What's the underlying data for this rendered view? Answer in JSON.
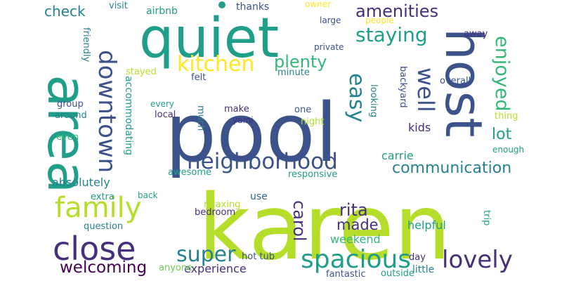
{
  "colors": {
    "background": "#ffffff",
    "dark_purple": "#440154",
    "indigo": "#472f7d",
    "blue": "#3b528b",
    "steel": "#31688e",
    "teal_blue": "#26828e",
    "teal": "#1f9e89",
    "green_teal": "#35b779",
    "green": "#6ece58",
    "lime": "#b5de2b",
    "yellow": "#fde725"
  },
  "words": [
    {
      "text": "karen"
    },
    {
      "text": "pool"
    },
    {
      "text": "quiet"
    },
    {
      "text": "area"
    },
    {
      "text": "host"
    },
    {
      "text": "close"
    },
    {
      "text": "family"
    },
    {
      "text": "neighborhood"
    },
    {
      "text": "downtown"
    },
    {
      "text": "spacious"
    },
    {
      "text": "staying"
    },
    {
      "text": "kitchen"
    },
    {
      "text": "enjoyed"
    },
    {
      "text": "well"
    },
    {
      "text": "easy"
    },
    {
      "text": "lovely"
    },
    {
      "text": "amenities"
    },
    {
      "text": "plenty"
    },
    {
      "text": "super"
    },
    {
      "text": "communication"
    },
    {
      "text": "welcoming"
    },
    {
      "text": "rita"
    },
    {
      "text": "carol"
    },
    {
      "text": "made"
    },
    {
      "text": "lot"
    },
    {
      "text": "check"
    },
    {
      "text": "weekend"
    },
    {
      "text": "experience"
    },
    {
      "text": "helpful"
    },
    {
      "text": "absolutely"
    },
    {
      "text": "carrie"
    },
    {
      "text": "kids"
    },
    {
      "text": "airbnb"
    },
    {
      "text": "thanks"
    },
    {
      "text": "visit"
    },
    {
      "text": "friendly"
    },
    {
      "text": "accommodating"
    },
    {
      "text": "minute"
    },
    {
      "text": "backyard"
    },
    {
      "text": "looking"
    },
    {
      "text": "felt"
    },
    {
      "text": "away"
    },
    {
      "text": "trip"
    },
    {
      "text": "group"
    },
    {
      "text": "stayed"
    },
    {
      "text": "much"
    },
    {
      "text": "night"
    },
    {
      "text": "private"
    },
    {
      "text": "large"
    },
    {
      "text": "overall"
    },
    {
      "text": "one"
    },
    {
      "text": "make"
    },
    {
      "text": "yami"
    },
    {
      "text": "local"
    },
    {
      "text": "every"
    },
    {
      "text": "around"
    },
    {
      "text": "even"
    },
    {
      "text": "extra"
    },
    {
      "text": "awesome"
    },
    {
      "text": "responsive"
    },
    {
      "text": "enough"
    },
    {
      "text": "thing"
    },
    {
      "text": "back"
    },
    {
      "text": "relaxing"
    },
    {
      "text": "use"
    },
    {
      "text": "bedroom"
    },
    {
      "text": "question"
    },
    {
      "text": "hot tub"
    },
    {
      "text": "day"
    },
    {
      "text": "anyone"
    },
    {
      "text": "fantastic"
    },
    {
      "text": "outside"
    },
    {
      "text": "little"
    },
    {
      "text": "owner"
    },
    {
      "text": "people"
    }
  ]
}
